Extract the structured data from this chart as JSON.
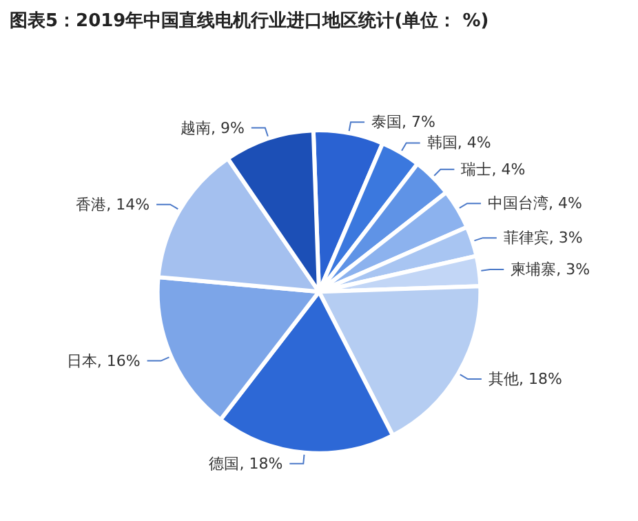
{
  "chart_data": {
    "type": "pie",
    "title": "图表5：2019年中国直线电机行业进口地区统计(单位： %)",
    "categories": [
      "泰国",
      "韩国",
      "瑞士",
      "中国台湾",
      "菲律宾",
      "柬埔寨",
      "其他",
      "德国",
      "日本",
      "香港",
      "越南"
    ],
    "values": [
      7,
      4,
      4,
      4,
      3,
      3,
      18,
      18,
      16,
      14,
      9
    ],
    "value_labels": [
      "7%",
      "4%",
      "4%",
      "4%",
      "3%",
      "3%",
      "18%",
      "18%",
      "16%",
      "14%",
      "9%"
    ],
    "colors": [
      "#2a62d2",
      "#3b78de",
      "#5f93e6",
      "#8cb2ee",
      "#a8c5f2",
      "#c2d6f6",
      "#b5cdf2",
      "#2d68d6",
      "#7ca5e8",
      "#a4c0ef",
      "#1c4fb6"
    ],
    "legend": false
  }
}
